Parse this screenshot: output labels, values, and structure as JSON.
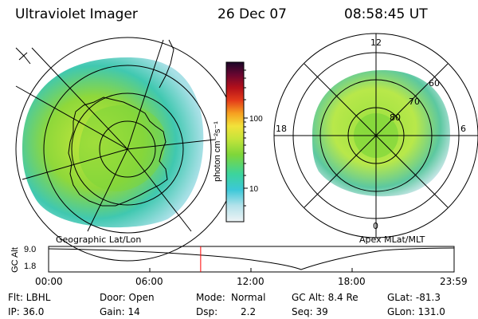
{
  "header": {
    "instrument": "Ultraviolet Imager",
    "date": "26 Dec 07",
    "time": "08:58:45 UT"
  },
  "left_panel": {
    "caption": "Geographic Lat/Lon"
  },
  "right_panel": {
    "caption": "Apex MLat/MLT",
    "mlt_labels": {
      "top": "12",
      "left": "18",
      "right": "6",
      "bottom": "0"
    },
    "lat_labels": [
      "60",
      "70",
      "80"
    ]
  },
  "colorbar": {
    "unit_label": "photon cm⁻²s⁻¹",
    "tick_100": "100",
    "tick_10": "10"
  },
  "timeline": {
    "ylabel": "GC Alt",
    "yticks": [
      "9.0",
      "1.8"
    ],
    "xticks": [
      "00:00",
      "06:00",
      "12:00",
      "18:00",
      "23:59"
    ],
    "marker_time_hours": 9.0
  },
  "footer": {
    "flt": "Flt: LBHL",
    "ip": "IP: 36.0",
    "door": "Door: Open",
    "gain": "Gain: 14",
    "mode_label": "Mode:",
    "mode_value": "Normal",
    "dsp_label": "Dsp:",
    "dsp_value": "2.2",
    "gc_alt": "GC Alt: 8.4 Re",
    "seq": "Seq: 39",
    "glat": "GLat: -81.3",
    "glon": "GLon: 131.0"
  },
  "colors": {
    "marker": "#ff0000"
  }
}
